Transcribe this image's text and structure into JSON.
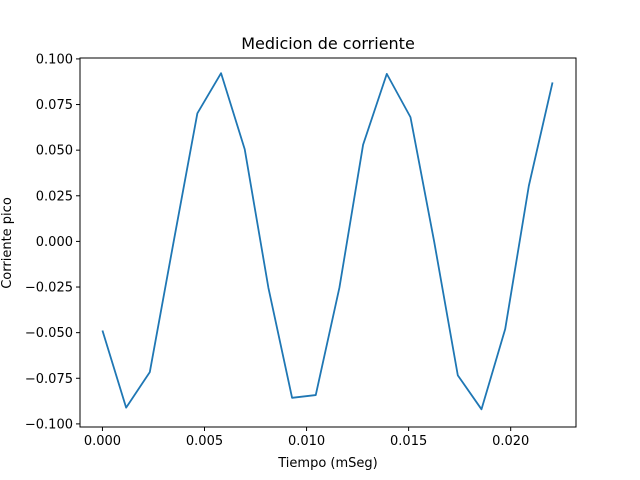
{
  "chart_data": {
    "type": "line",
    "title": "Medicion de corriente",
    "xlabel": "Tiempo (mSeg)",
    "ylabel": "Corriente pico",
    "xlim": [
      -0.0011,
      0.0232
    ],
    "ylim": [
      -0.1017,
      0.1005
    ],
    "grid": false,
    "x_ticks": [
      0.0,
      0.005,
      0.01,
      0.015,
      0.02
    ],
    "x_tick_labels": [
      "0.000",
      "0.005",
      "0.010",
      "0.015",
      "0.020"
    ],
    "y_ticks": [
      -0.1,
      -0.075,
      -0.05,
      -0.025,
      0.0,
      0.025,
      0.05,
      0.075,
      0.1
    ],
    "y_tick_labels": [
      "−0.100",
      "−0.075",
      "−0.050",
      "−0.025",
      "0.000",
      "0.025",
      "0.050",
      "0.075",
      "0.100"
    ],
    "series": [
      {
        "color": "#1f77b4",
        "x": [
          0.0,
          0.00116,
          0.00232,
          0.00349,
          0.00465,
          0.00581,
          0.00697,
          0.00813,
          0.00929,
          0.01045,
          0.01161,
          0.01277,
          0.01393,
          0.01509,
          0.01625,
          0.01741,
          0.01857,
          0.01973,
          0.02089,
          0.02205
        ],
        "y": [
          -0.0488,
          -0.0911,
          -0.0716,
          0.0,
          0.0702,
          0.0922,
          0.0505,
          -0.0254,
          -0.0857,
          -0.0842,
          -0.0253,
          0.053,
          0.0918,
          0.0681,
          0.0,
          -0.0734,
          -0.092,
          -0.0481,
          0.0305,
          0.0871
        ]
      }
    ]
  }
}
